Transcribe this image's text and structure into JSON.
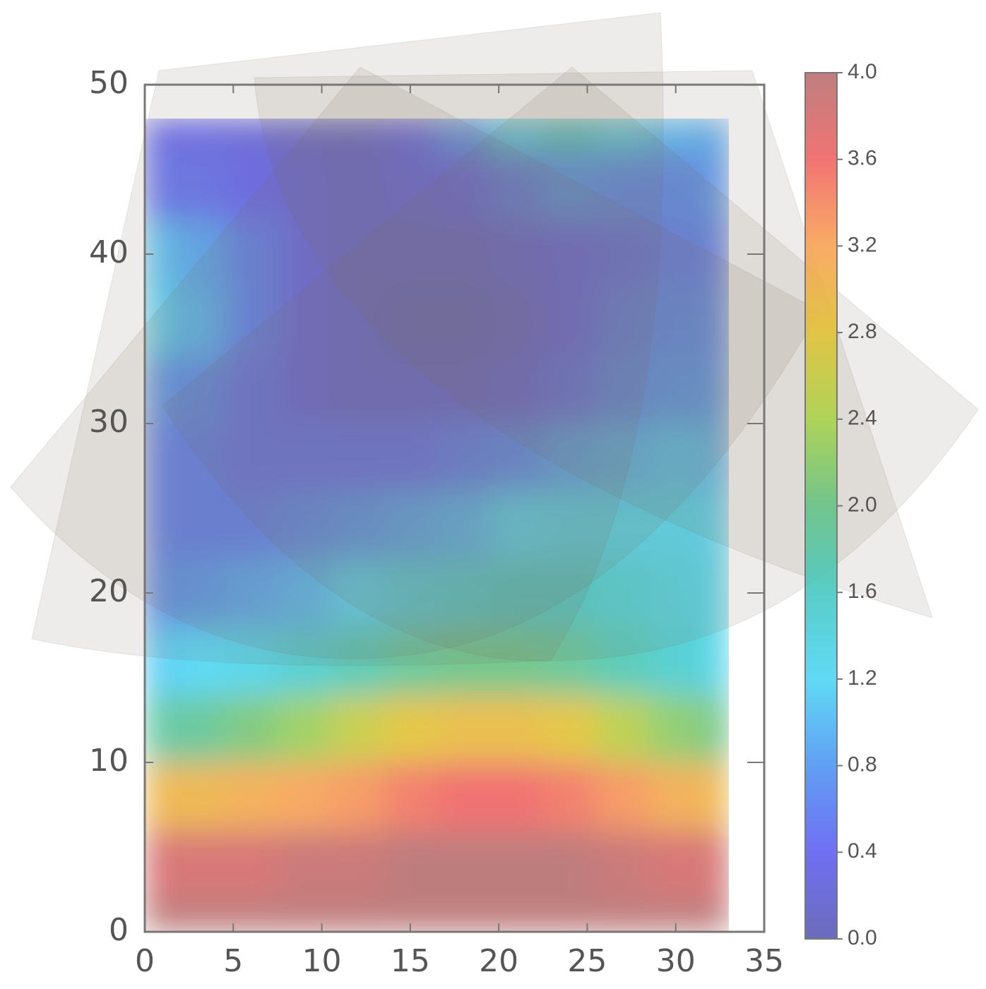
{
  "chart_data": {
    "type": "contour",
    "x": [
      0,
      3,
      6,
      9,
      12,
      15,
      18,
      21,
      24,
      27,
      30,
      33
    ],
    "y": [
      0,
      4,
      8,
      12,
      16,
      20,
      24,
      28,
      32,
      36,
      40,
      44,
      48
    ],
    "z": [
      [
        4.0,
        4.0,
        4.0,
        4.0,
        4.0,
        4.0,
        4.0,
        4.0,
        4.0,
        4.0,
        4.0,
        4.0
      ],
      [
        3.8,
        3.8,
        3.8,
        3.9,
        3.9,
        4.0,
        4.0,
        4.0,
        4.0,
        3.9,
        3.8,
        3.8
      ],
      [
        3.0,
        3.0,
        3.1,
        3.2,
        3.3,
        3.5,
        3.6,
        3.6,
        3.5,
        3.3,
        3.1,
        3.0
      ],
      [
        1.8,
        1.9,
        2.1,
        2.3,
        2.6,
        2.8,
        2.9,
        2.9,
        2.8,
        2.5,
        2.2,
        2.0
      ],
      [
        1.1,
        1.2,
        1.3,
        1.5,
        1.7,
        1.9,
        2.0,
        2.0,
        1.9,
        1.7,
        1.5,
        1.3
      ],
      [
        0.7,
        0.8,
        0.9,
        1.0,
        1.2,
        1.4,
        1.5,
        1.6,
        1.6,
        1.5,
        1.4,
        1.3
      ],
      [
        0.6,
        0.6,
        0.6,
        0.7,
        0.8,
        0.9,
        1.0,
        1.2,
        1.3,
        1.3,
        1.3,
        1.2
      ],
      [
        0.6,
        0.6,
        0.5,
        0.5,
        0.5,
        0.5,
        0.6,
        0.7,
        0.9,
        1.0,
        1.1,
        1.0
      ],
      [
        0.8,
        0.7,
        0.5,
        0.3,
        0.2,
        0.2,
        0.2,
        0.3,
        0.5,
        0.7,
        0.8,
        0.8
      ],
      [
        1.2,
        1.0,
        0.6,
        0.3,
        0.2,
        0.1,
        0.1,
        0.2,
        0.4,
        0.6,
        0.7,
        0.7
      ],
      [
        1.1,
        0.9,
        0.6,
        0.3,
        0.2,
        0.2,
        0.2,
        0.3,
        0.4,
        0.5,
        0.6,
        0.6
      ],
      [
        0.5,
        0.5,
        0.4,
        0.3,
        0.2,
        0.3,
        0.4,
        0.6,
        0.8,
        0.7,
        0.7,
        0.8
      ],
      [
        0.4,
        0.4,
        0.3,
        0.2,
        0.2,
        0.4,
        0.8,
        1.3,
        1.6,
        1.3,
        1.0,
        0.9
      ]
    ],
    "xlim": [
      0,
      35
    ],
    "xticks": [
      0,
      5,
      10,
      15,
      20,
      25,
      30,
      35
    ],
    "ylim": [
      0,
      50
    ],
    "yticks": [
      0,
      10,
      20,
      30,
      40,
      50
    ],
    "zlim": [
      0,
      4
    ],
    "zticks": [
      {
        "value": 0,
        "label": "0.0"
      },
      0.4,
      0.8,
      1.2,
      1.6,
      {
        "value": 2,
        "label": "2.0"
      },
      2.4,
      2.8,
      3.2,
      3.6,
      {
        "value": 4,
        "label": "4.0"
      }
    ],
    "colormap": [
      "#5c5cb4",
      "#5f5ff2",
      "#4f94f2",
      "#4fd6f4",
      "#46c8c2",
      "#66c284",
      "#a9d24a",
      "#e2c236",
      "#f8a254",
      "#f06464",
      "#b87070"
    ]
  }
}
